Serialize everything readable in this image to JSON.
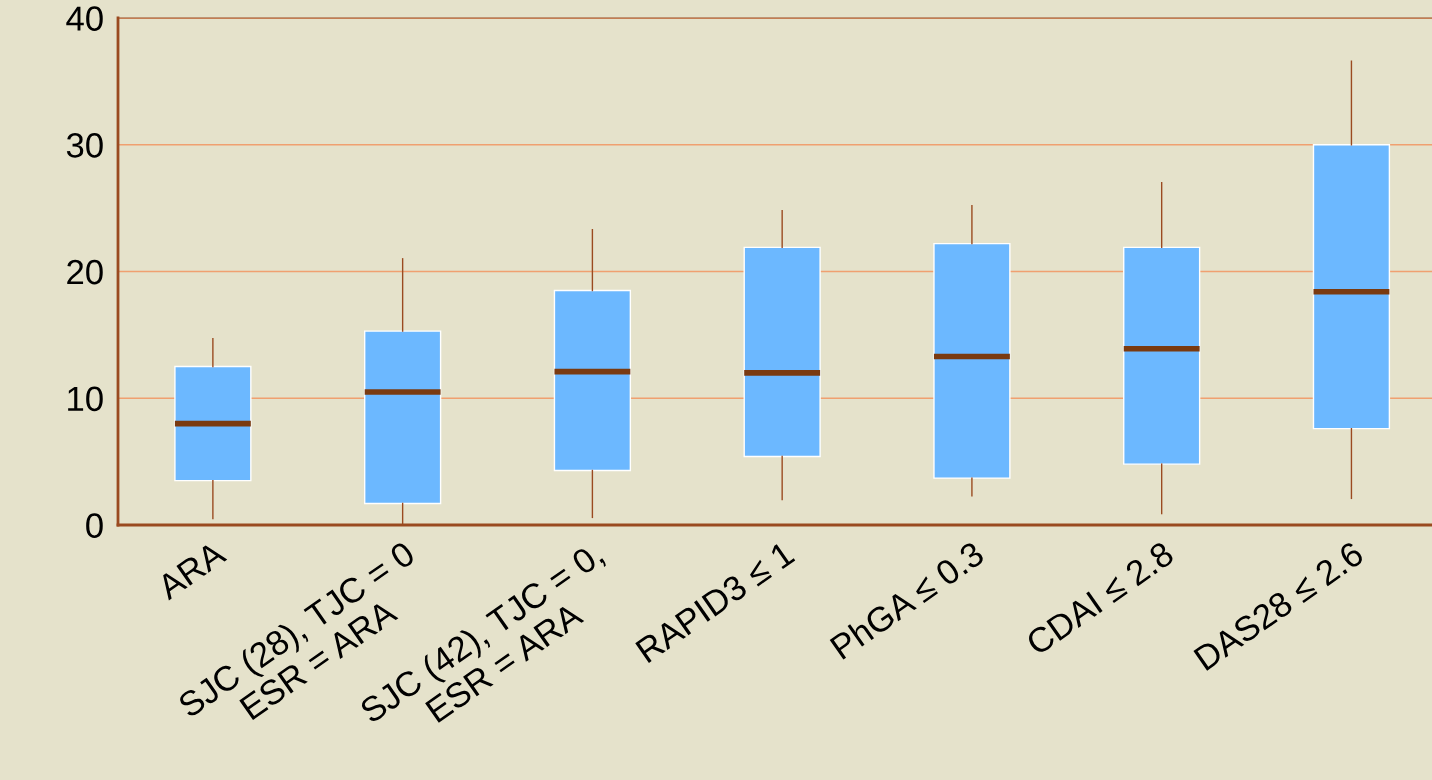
{
  "chart_data": {
    "type": "box",
    "categories": [
      "ARA",
      "SJC (28), TJC = 0\nESR = ARA",
      "SJC (42), TJC = 0,\nESR = ARA",
      "RAPID3 ≤ 1",
      "PhGA ≤ 0.3",
      "CDAI ≤ 2.8",
      "DAS28 ≤ 2.6"
    ],
    "boxes": [
      {
        "low": 0.5,
        "q1": 3.5,
        "median": 8.0,
        "q3": 12.5,
        "high": 14.7
      },
      {
        "low": 0,
        "q1": 1.7,
        "median": 10.5,
        "q3": 15.3,
        "high": 21.0
      },
      {
        "low": 0.6,
        "q1": 4.3,
        "median": 12.1,
        "q3": 18.5,
        "high": 23.3
      },
      {
        "low": 2.0,
        "q1": 5.4,
        "median": 12.0,
        "q3": 21.9,
        "high": 24.8
      },
      {
        "low": 2.3,
        "q1": 3.7,
        "median": 13.3,
        "q3": 22.2,
        "high": 25.2
      },
      {
        "low": 0.9,
        "q1": 4.8,
        "median": 13.9,
        "q3": 21.9,
        "high": 27.0
      },
      {
        "low": 2.1,
        "q1": 7.6,
        "median": 18.4,
        "q3": 30.0,
        "high": 36.6
      }
    ],
    "color": "#6cb8ff",
    "ylim": [
      0,
      40
    ],
    "yticks": [
      0,
      10,
      20,
      30,
      40
    ],
    "grid": "y"
  }
}
